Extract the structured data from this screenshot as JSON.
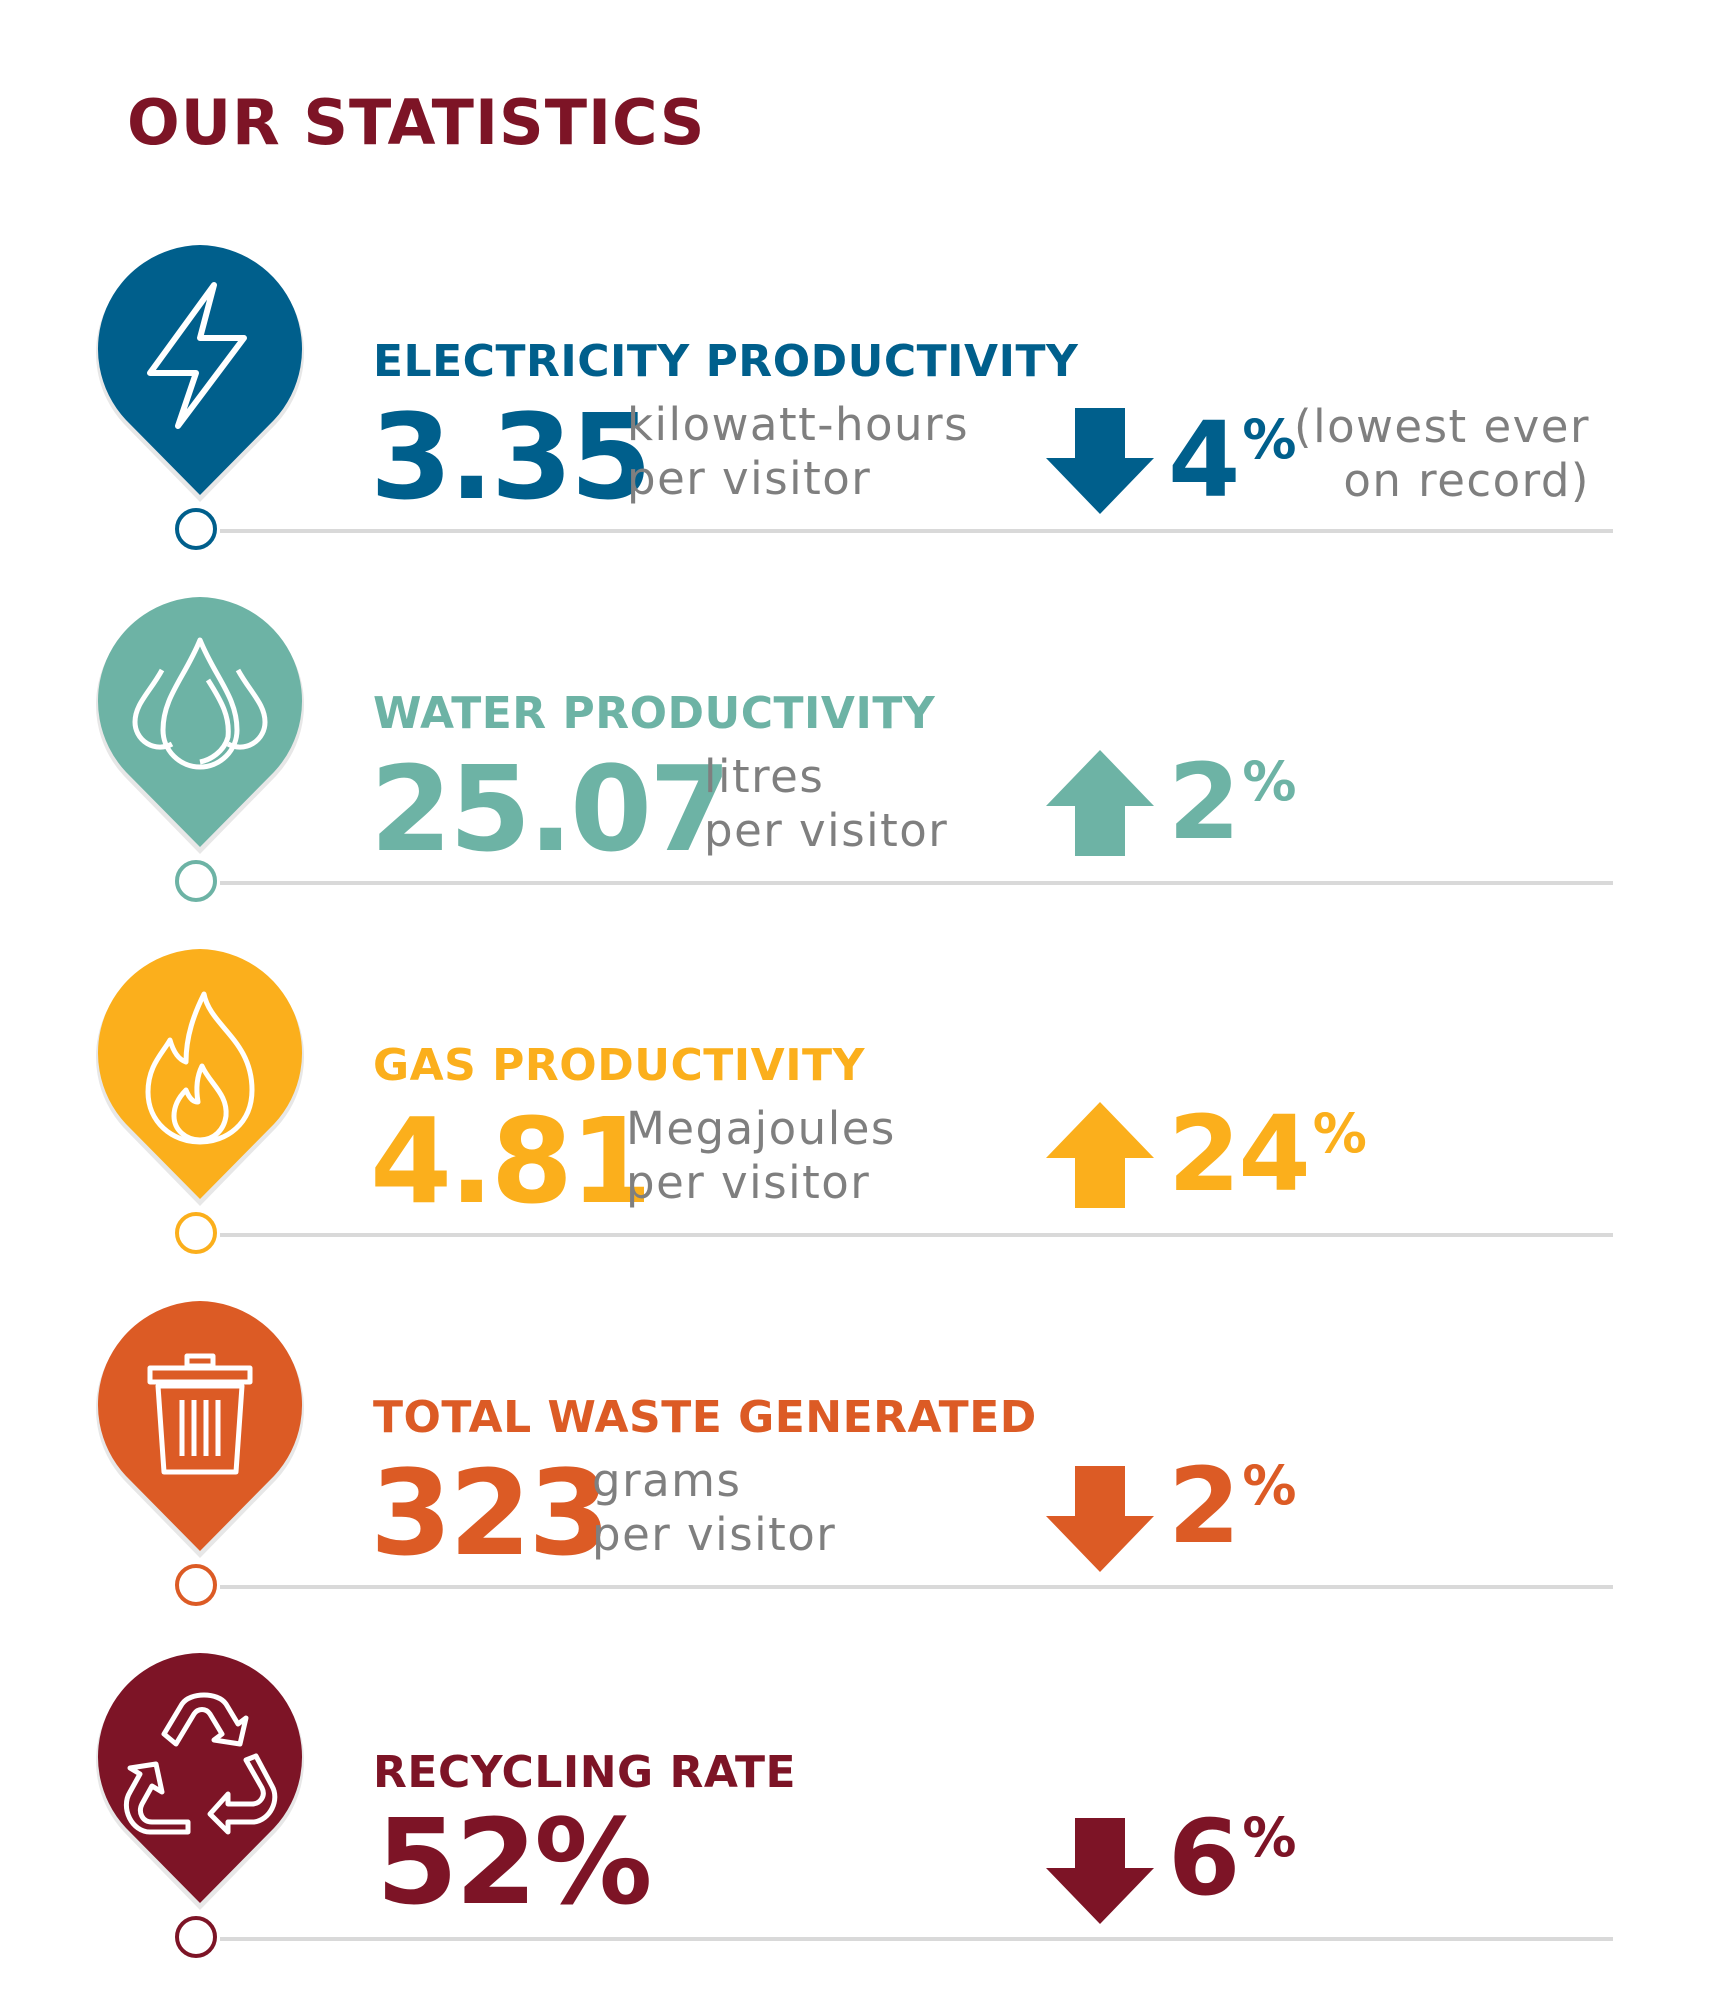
{
  "page_title": "OUR STATISTICS",
  "stats": [
    {
      "label": "ELECTRICITY PRODUCTIVITY",
      "value": "3.35",
      "unit_line1": "kilowatt-hours",
      "unit_line2": "per visitor",
      "trend": "down",
      "change": "4",
      "change_unit": "%",
      "note_line1": "(lowest ever",
      "note_line2": "on record)",
      "icon": "lightning-bolt-icon",
      "color": "#005f8c"
    },
    {
      "label": "WATER PRODUCTIVITY",
      "value": "25.07",
      "unit_line1": "litres",
      "unit_line2": "per visitor",
      "trend": "up",
      "change": "2",
      "change_unit": "%",
      "icon": "water-drops-icon",
      "color": "#6db3a5"
    },
    {
      "label": "GAS PRODUCTIVITY",
      "value": "4.81",
      "unit_line1": "Megajoules",
      "unit_line2": "per visitor",
      "trend": "up",
      "change": "24",
      "change_unit": "%",
      "icon": "flame-icon",
      "color": "#fbaf1c"
    },
    {
      "label": "TOTAL WASTE GENERATED",
      "value": "323",
      "unit_line1": "grams",
      "unit_line2": "per visitor",
      "trend": "down",
      "change": "2",
      "change_unit": "%",
      "icon": "trash-bin-icon",
      "color": "#dc5b25"
    },
    {
      "label": "RECYCLING RATE",
      "value": "52%",
      "trend": "down",
      "change": "6",
      "change_unit": "%",
      "icon": "recycle-icon",
      "color": "#7d1426"
    }
  ]
}
